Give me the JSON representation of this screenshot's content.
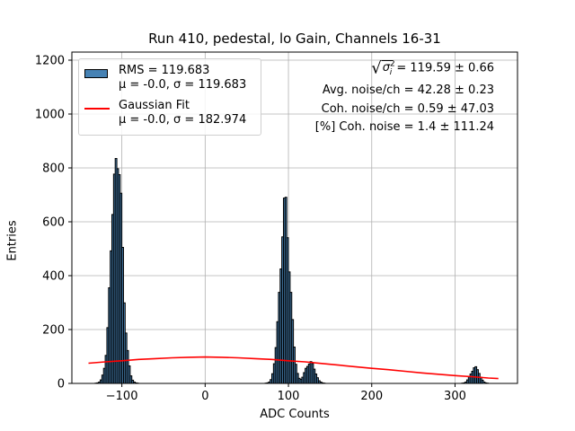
{
  "chart_data": {
    "type": "histogram",
    "title": "Run 410, pedestal, lo Gain, Channels 16-31",
    "xlabel": "ADC Counts",
    "ylabel": "Entries",
    "xlim": [
      -160,
      375
    ],
    "ylim": [
      0,
      1230
    ],
    "xticks": [
      -100,
      0,
      100,
      200,
      300
    ],
    "xtick_labels": [
      "−100",
      "0",
      "100",
      "200",
      "300"
    ],
    "yticks": [
      0,
      200,
      400,
      600,
      800,
      1000,
      1200
    ],
    "ytick_labels": [
      "0",
      "200",
      "400",
      "600",
      "800",
      "1000",
      "1200"
    ],
    "grid": true,
    "legend_position": "top-left",
    "colors": {
      "histogram_fill": "#4682b4",
      "histogram_edge": "#000000",
      "fit": "#ff0000",
      "grid": "#b0b0b0"
    },
    "histogram": {
      "bin_width": 2,
      "components": [
        {
          "center": -106,
          "sigma": 6.5,
          "peak": 860
        },
        {
          "center": 96,
          "sigma": 6.2,
          "peak": 640
        },
        {
          "center": 126,
          "sigma": 5.5,
          "peak": 80
        },
        {
          "center": 324,
          "sigma": 5,
          "peak": 60
        }
      ]
    },
    "series": [
      {
        "name": "RMS = 119.683",
        "type": "histogram"
      },
      {
        "name": "Gaussian Fit",
        "type": "line",
        "x": [
          -140,
          -120,
          -100,
          -80,
          -60,
          -40,
          -20,
          0,
          20,
          40,
          60,
          80,
          100,
          120,
          140,
          160,
          180,
          200,
          220,
          240,
          260,
          280,
          300,
          320,
          340,
          352
        ],
        "y": [
          75,
          80,
          84,
          89,
          92,
          95,
          97,
          98,
          97,
          95,
          92,
          89,
          84,
          80,
          74,
          68,
          62,
          56,
          51,
          45,
          39,
          34,
          29,
          25,
          20,
          18
        ]
      }
    ]
  },
  "legend": {
    "hist_line1": "RMS = 119.683",
    "hist_line2": "μ = -0.0, σ = 119.683",
    "fit_line1": "Gaussian Fit",
    "fit_line2": "μ = -0.0, σ = 182.974"
  },
  "stats": {
    "sigma_symbol": "σ",
    "sigma_sup": "2",
    "sigma_sub": "i",
    "sqrt_value": "= 119.59 ± 0.66",
    "avg_noise": "Avg. noise/ch = 42.28 ± 0.23",
    "coh_noise": "Coh. noise/ch = 0.59 ± 47.03",
    "coh_percent": "[%] Coh. noise = 1.4 ± 111.24"
  }
}
